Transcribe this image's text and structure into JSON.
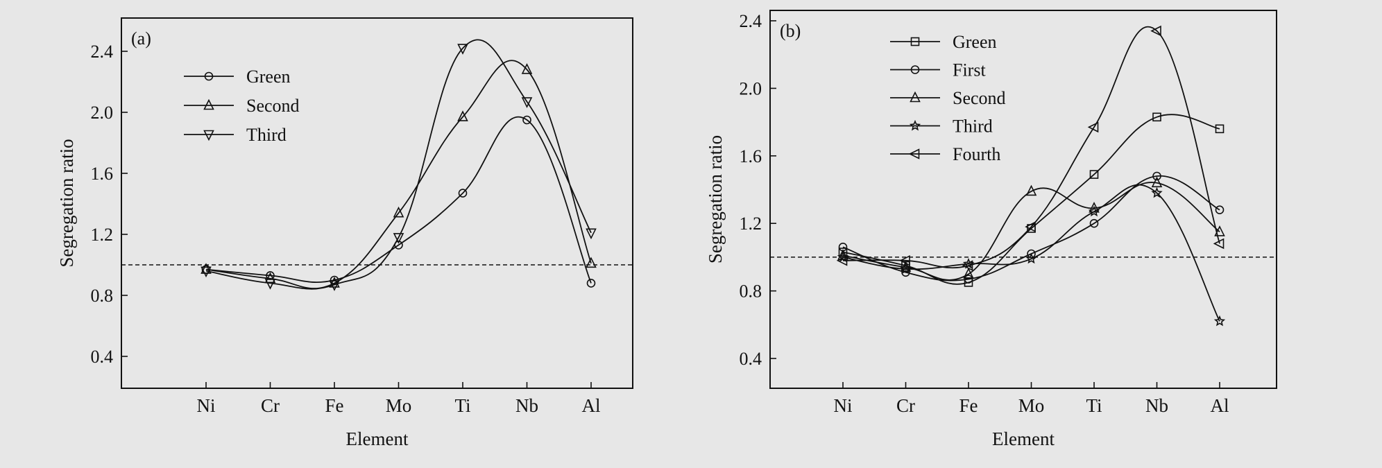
{
  "figure": {
    "background": "#e7e7e7",
    "ink": "#111111"
  },
  "chart_data": [
    {
      "panel_label": "(a)",
      "type": "scatter",
      "xlabel": "Element",
      "ylabel": "Segregation ratio",
      "categories": [
        "Ni",
        "Cr",
        "Fe",
        "Mo",
        "Ti",
        "Nb",
        "Al"
      ],
      "ylim": [
        0.2,
        2.6
      ],
      "yticks": [
        "0.4",
        "0.8",
        "1.2",
        "1.6",
        "2.0",
        "2.4"
      ],
      "reference_line": 1.0,
      "grid": false,
      "legend_position": "top-left",
      "series": [
        {
          "name": "Green",
          "marker": "circle",
          "values": [
            0.97,
            0.93,
            0.9,
            1.13,
            1.47,
            1.95,
            0.88
          ]
        },
        {
          "name": "Second",
          "marker": "triangle-up",
          "values": [
            0.97,
            0.91,
            0.88,
            1.34,
            1.97,
            2.28,
            1.01
          ]
        },
        {
          "name": "Third",
          "marker": "triangle-down",
          "values": [
            0.96,
            0.88,
            0.87,
            1.18,
            2.42,
            2.07,
            1.21
          ]
        }
      ]
    },
    {
      "panel_label": "(b)",
      "type": "scatter",
      "xlabel": "Element",
      "ylabel": "Segregation ratio",
      "categories": [
        "Ni",
        "Cr",
        "Fe",
        "Mo",
        "Ti",
        "Nb",
        "Al"
      ],
      "ylim": [
        0.2,
        2.4
      ],
      "yticks": [
        "0.4",
        "0.8",
        "1.2",
        "1.6",
        "2.0",
        "2.4"
      ],
      "reference_line": 1.0,
      "grid": false,
      "legend_position": "top-left",
      "series": [
        {
          "name": "Green",
          "marker": "square",
          "values": [
            1.03,
            0.95,
            0.85,
            1.17,
            1.49,
            1.83,
            1.76
          ]
        },
        {
          "name": "First",
          "marker": "circle",
          "values": [
            1.06,
            0.91,
            0.87,
            1.02,
            1.2,
            1.48,
            1.28
          ]
        },
        {
          "name": "Second",
          "marker": "triangle-up",
          "values": [
            1.01,
            0.94,
            0.9,
            1.39,
            1.29,
            1.44,
            1.15
          ]
        },
        {
          "name": "Third",
          "marker": "star",
          "values": [
            1.0,
            0.93,
            0.96,
            0.99,
            1.27,
            1.38,
            0.62
          ]
        },
        {
          "name": "Fourth",
          "marker": "triangle-left",
          "values": [
            0.98,
            0.98,
            0.95,
            1.18,
            1.77,
            2.34,
            1.08
          ]
        }
      ]
    }
  ]
}
